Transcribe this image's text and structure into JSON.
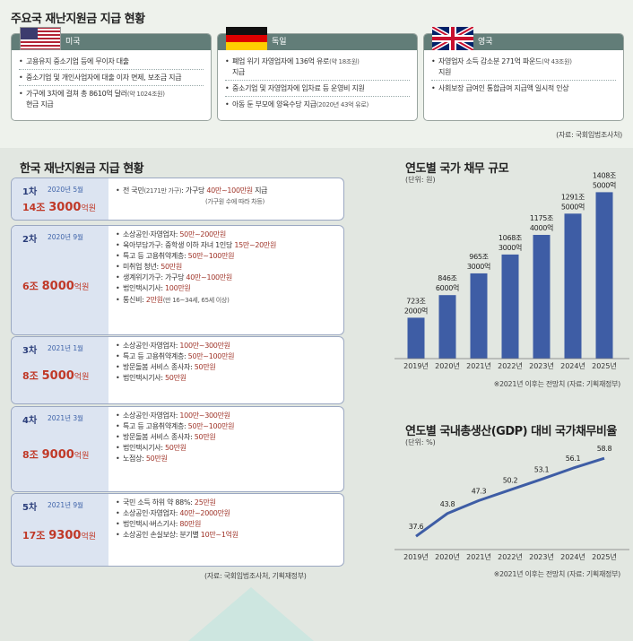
{
  "top_title": "주요국 재난지원금 지급 현황",
  "countries": [
    {
      "name": "미국",
      "flag_icon": "us-flag-icon",
      "items": [
        {
          "text": "고용유지 중소기업 등에 무이자 대출",
          "note": ""
        },
        {
          "text": "중소기업 및 개인사업자에 대출 이자 면제, 보조금 지급",
          "note": ""
        },
        {
          "text": "가구에 3차에 걸쳐 총 8610억 달러",
          "note": "(약 1024조원)",
          "text2": "현금 지급"
        }
      ]
    },
    {
      "name": "독일",
      "flag_icon": "germany-flag-icon",
      "items": [
        {
          "text": "폐업 위기 자영업자에 136억 유로",
          "note": "(약 18조원)",
          "text2": "지급"
        },
        {
          "text": "중소기업 및 자영업자에 임차료 등 운영비 지원",
          "note": ""
        },
        {
          "text": "아동 둔 부모에 양육수당 지급",
          "note": "(2020년 43억 유로)"
        }
      ]
    },
    {
      "name": "영국",
      "flag_icon": "uk-flag-icon",
      "items": [
        {
          "text": "자영업자 소득 감소분 271억 파운드",
          "note": "(약 43조원)",
          "text2": "지원"
        },
        {
          "text": "사회보장 급여인 통합급여 지급액 일시적 인상",
          "note": ""
        }
      ]
    }
  ],
  "top_source": "(자료: 국회입법조사처)",
  "korea_title": "한국 재난지원금 지급 현황",
  "rounds": [
    {
      "label": "1차",
      "date": "2020년 5월",
      "amount_a": "14조 ",
      "amount_b": "3000",
      "amount_c": "억원",
      "items": [
        {
          "t": "전 국민",
          "s": "(2171만 가구)",
          "t2": ": 가구당 ",
          "h": "40만~100만원",
          "t3": " 지급"
        },
        {
          "t": "",
          "s": "(가구원 수에 따라 차등)",
          "t2": "",
          "h": "",
          "t3": ""
        }
      ]
    },
    {
      "label": "2차",
      "date": "2020년 9월",
      "amount_a": "6조 ",
      "amount_b": "8000",
      "amount_c": "억원",
      "items": [
        {
          "t": "소상공인·자영업자: ",
          "h": "50만~200만원"
        },
        {
          "t": "육아부담가구: 중학생 이하 자녀 1인당 ",
          "h": "15만~20만원"
        },
        {
          "t": "특고 등 고용취약계층: ",
          "h": "50만~100만원"
        },
        {
          "t": "미취업 청년: ",
          "h": "50만원"
        },
        {
          "t": "생계위기가구: 가구당 ",
          "h": "40만~100만원"
        },
        {
          "t": "법인택시기사: ",
          "h": "100만원"
        },
        {
          "t": "통신비: ",
          "h": "2만원",
          "s": "(만 16~34세, 65세 이상)"
        }
      ]
    },
    {
      "label": "3차",
      "date": "2021년 1월",
      "amount_a": "8조 ",
      "amount_b": "5000",
      "amount_c": "억원",
      "items": [
        {
          "t": "소상공인·자영업자: ",
          "h": "100만~300만원"
        },
        {
          "t": "특고 등 고용취약계층: ",
          "h": "50만~100만원"
        },
        {
          "t": "방문돌봄 서비스 종사자: ",
          "h": "50만원"
        },
        {
          "t": "법인택시기사: ",
          "h": "50만원"
        }
      ]
    },
    {
      "label": "4차",
      "date": "2021년 3월",
      "amount_a": "8조 ",
      "amount_b": "9000",
      "amount_c": "억원",
      "items": [
        {
          "t": "소상공인·자영업자: ",
          "h": "100만~300만원"
        },
        {
          "t": "특고 등 고용취약계층: ",
          "h": "50만~100만원"
        },
        {
          "t": "방문돌봄 서비스 종사자: ",
          "h": "50만원"
        },
        {
          "t": "법인택시기사: ",
          "h": "50만원"
        },
        {
          "t": "노점상: ",
          "h": "50만원"
        }
      ]
    },
    {
      "label": "5차",
      "date": "2021년 9월",
      "amount_a": "17조 ",
      "amount_b": "9300",
      "amount_c": "억원",
      "items": [
        {
          "t": "국민 소득 하위 약 88%: ",
          "h": "25만원"
        },
        {
          "t": "소상공인·자영업자: ",
          "h": "40만~2000만원"
        },
        {
          "t": "법인택시·버스기사: ",
          "h": "80만원"
        },
        {
          "t": "소상공인 손실보상: 분기별 ",
          "h": "10만~1억원"
        }
      ]
    }
  ],
  "korea_source": "(자료: 국회입법조사처, 기획재정부)",
  "chart_data": [
    {
      "type": "bar",
      "title": "연도별 국가 채무 규모",
      "unit": "(단위: 원)",
      "categories": [
        "2019년",
        "2020년",
        "2021년",
        "2022년",
        "2023년",
        "2024년",
        "2025년"
      ],
      "values": [
        723.2,
        846.6,
        965.3,
        1068.3,
        1175.4,
        1291.5,
        1408.5
      ],
      "labels": [
        [
          "723조",
          "2000억"
        ],
        [
          "846조",
          "6000억"
        ],
        [
          "965조",
          "3000억"
        ],
        [
          "1068조",
          "3000억"
        ],
        [
          "1175조",
          "4000억"
        ],
        [
          "1291조",
          "5000억"
        ],
        [
          "1408조",
          "5000억"
        ]
      ],
      "ylim": [
        500,
        1430
      ],
      "note": "※2021년 이후는 전망치 (자료: 기획재정부)",
      "color": "#3e5da5"
    },
    {
      "type": "line",
      "title": "연도별 국내총생산(GDP) 대비 국가채무비율",
      "unit": "(단위: %)",
      "categories": [
        "2019년",
        "2020년",
        "2021년",
        "2022년",
        "2023년",
        "2024년",
        "2025년"
      ],
      "values": [
        37.6,
        43.8,
        47.3,
        50.2,
        53.1,
        56.1,
        58.8
      ],
      "labels": [
        "37.6",
        "43.8",
        "47.3",
        "50.2",
        "53.1",
        "56.1",
        "58.8"
      ],
      "ylim": [
        34,
        62
      ],
      "note": "※2021년 이후는 전망치 (자료: 기획재정부)",
      "color": "#3e5da5"
    }
  ]
}
